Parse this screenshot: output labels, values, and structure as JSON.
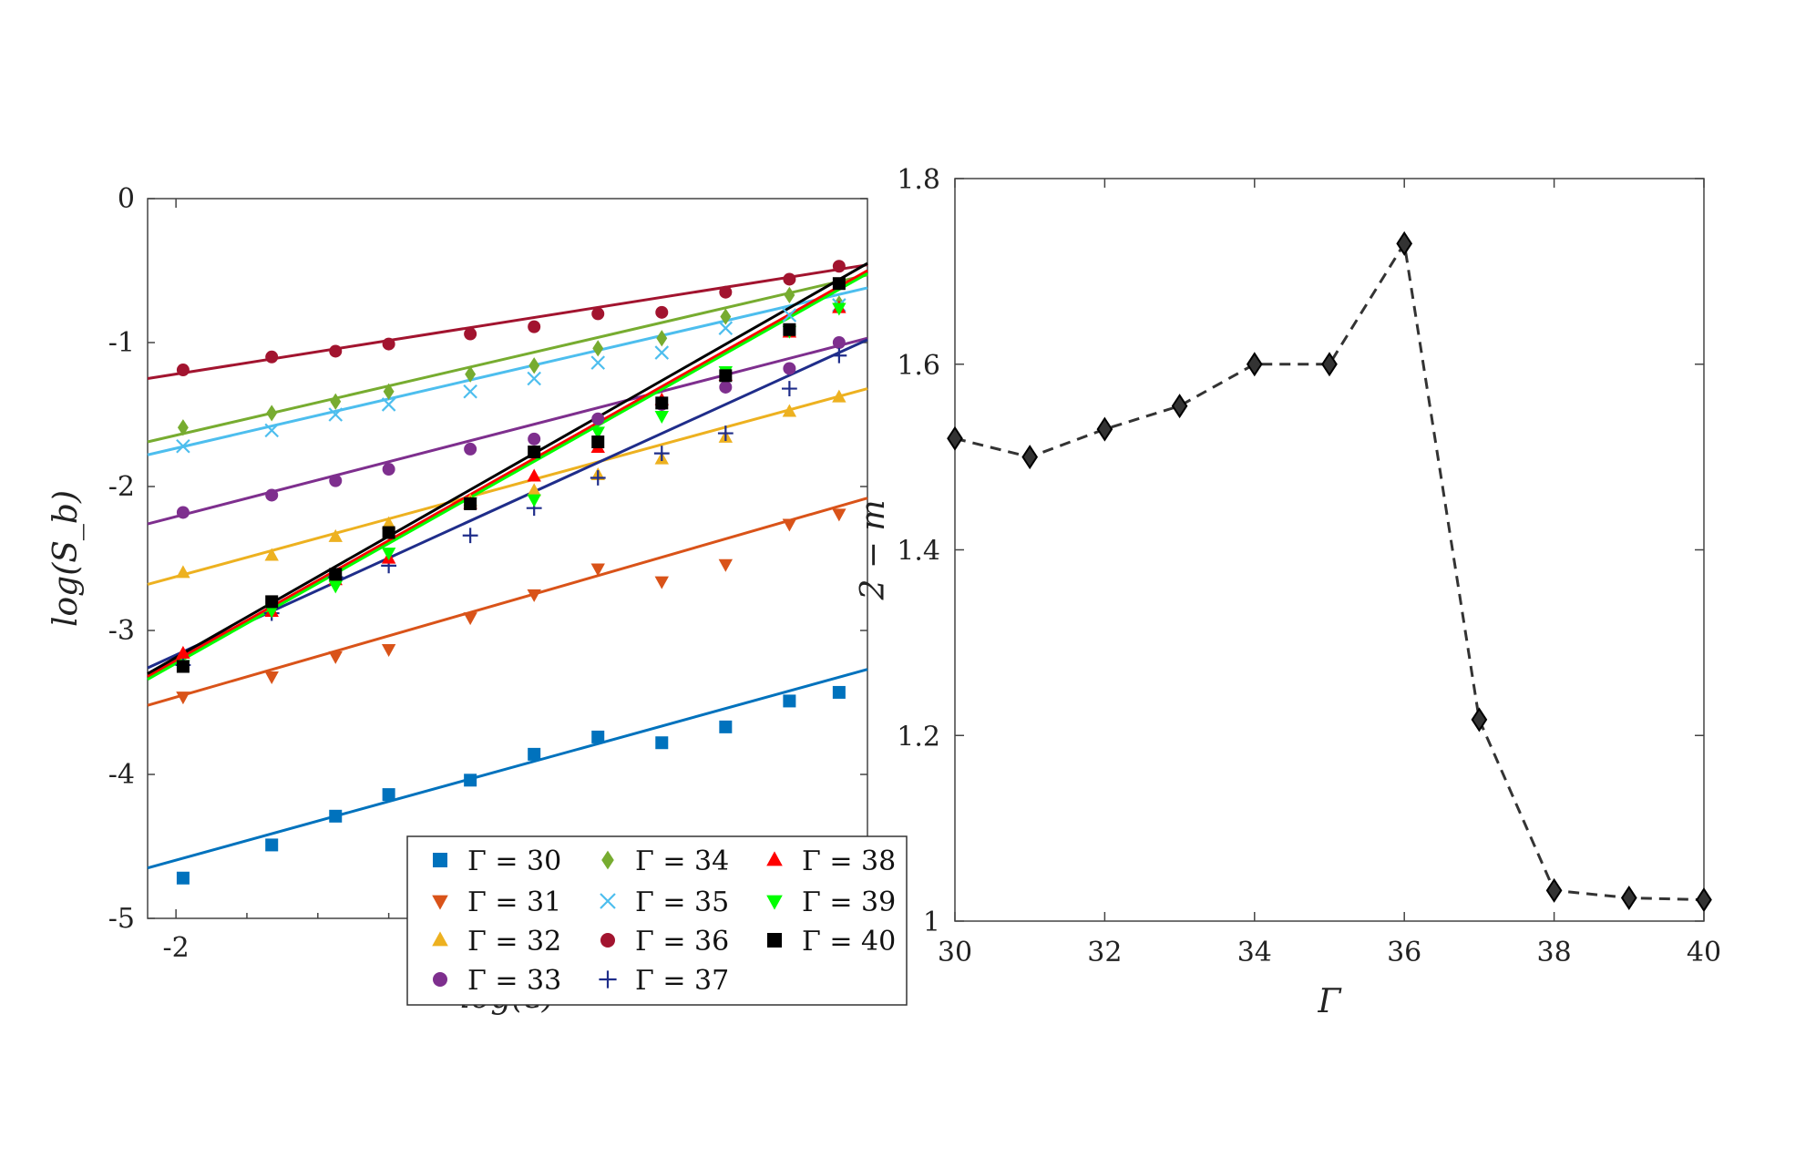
{
  "chart_data": [
    {
      "type": "scatter",
      "title": "",
      "xlabel": "log(ε)",
      "ylabel": "log(S_b)",
      "xlim": [
        -2.08,
        -0.05
      ],
      "ylim": [
        -5,
        0
      ],
      "xticks": [
        {
          "v": -2,
          "label": "-2"
        }
      ],
      "yticks": [
        {
          "v": 0,
          "label": "0"
        },
        {
          "v": -1,
          "label": "-1"
        },
        {
          "v": -2,
          "label": "-2"
        },
        {
          "v": -3,
          "label": "-3"
        },
        {
          "v": -4,
          "label": "-4"
        },
        {
          "v": -5,
          "label": "-5"
        }
      ],
      "x": [
        -1.98,
        -1.73,
        -1.55,
        -1.4,
        -1.17,
        -0.99,
        -0.81,
        -0.63,
        -0.45,
        -0.27,
        -0.13
      ],
      "legend_position": "bottom-right",
      "series": [
        {
          "name": "Γ = 30",
          "color": "#0072BD",
          "marker": "square",
          "values": [
            -4.72,
            -4.49,
            -4.29,
            -4.14,
            -4.04,
            -3.86,
            -3.74,
            -3.78,
            -3.67,
            -3.49,
            -3.43
          ],
          "fit": [
            -4.65,
            -3.27
          ]
        },
        {
          "name": "Γ = 31",
          "color": "#D95319",
          "marker": "triangle-down",
          "values": [
            -3.46,
            -3.32,
            -3.18,
            -3.13,
            -2.91,
            -2.75,
            -2.57,
            -2.66,
            -2.54,
            -2.26,
            -2.19
          ],
          "fit": [
            -3.52,
            -2.08
          ]
        },
        {
          "name": "Γ = 32",
          "color": "#EDB120",
          "marker": "triangle-up",
          "values": [
            -2.6,
            -2.48,
            -2.35,
            -2.26,
            -2.1,
            -2.03,
            -1.92,
            -1.81,
            -1.66,
            -1.48,
            -1.38
          ],
          "fit": [
            -2.68,
            -1.32
          ]
        },
        {
          "name": "Γ = 33",
          "color": "#7E2F8E",
          "marker": "circle",
          "values": [
            -2.18,
            -2.06,
            -1.96,
            -1.88,
            -1.74,
            -1.67,
            -1.53,
            -1.43,
            -1.31,
            -1.18,
            -1.0
          ],
          "fit": [
            -2.26,
            -0.97
          ]
        },
        {
          "name": "Γ = 34",
          "color": "#77AC30",
          "marker": "diamond",
          "values": [
            -1.59,
            -1.49,
            -1.41,
            -1.34,
            -1.22,
            -1.16,
            -1.04,
            -0.97,
            -0.82,
            -0.67,
            -0.73
          ],
          "fit": [
            -1.69,
            -0.53
          ]
        },
        {
          "name": "Γ = 35",
          "color": "#4DBEEE",
          "marker": "x",
          "values": [
            -1.72,
            -1.61,
            -1.5,
            -1.43,
            -1.34,
            -1.25,
            -1.14,
            -1.07,
            -0.9,
            -0.81,
            -0.74
          ],
          "fit": [
            -1.78,
            -0.62
          ]
        },
        {
          "name": "Γ = 36",
          "color": "#A2142F",
          "marker": "circle",
          "values": [
            -1.19,
            -1.1,
            -1.06,
            -1.01,
            -0.94,
            -0.89,
            -0.8,
            -0.79,
            -0.65,
            -0.56,
            -0.47
          ],
          "fit": [
            -1.25,
            -0.46
          ]
        },
        {
          "name": "Γ = 37",
          "color": "#1F2D8A",
          "marker": "plus",
          "values": [
            -3.24,
            -2.88,
            -2.63,
            -2.55,
            -2.34,
            -2.15,
            -1.94,
            -1.77,
            -1.63,
            -1.32,
            -1.09
          ],
          "fit": [
            -3.26,
            -0.98
          ]
        },
        {
          "name": "Γ = 38",
          "color": "#FF0000",
          "marker": "triangle-up",
          "values": [
            -3.16,
            -2.87,
            -2.65,
            -2.5,
            -2.12,
            -1.93,
            -1.73,
            -1.4,
            -1.23,
            -0.93,
            -0.76
          ],
          "fit": [
            -3.32,
            -0.5
          ]
        },
        {
          "name": "Γ = 39",
          "color": "#00FF00",
          "marker": "triangle-down",
          "values": [
            -3.24,
            -2.86,
            -2.69,
            -2.46,
            -2.11,
            -2.09,
            -1.62,
            -1.51,
            -1.2,
            -0.92,
            -0.76
          ],
          "fit": [
            -3.34,
            -0.52
          ]
        },
        {
          "name": "Γ = 40",
          "color": "#000000",
          "marker": "square",
          "values": [
            -3.25,
            -2.8,
            -2.61,
            -2.32,
            -2.12,
            -1.76,
            -1.69,
            -1.42,
            -1.23,
            -0.91,
            -0.59
          ],
          "fit": [
            -3.3,
            -0.45
          ]
        }
      ]
    },
    {
      "type": "line",
      "title": "",
      "xlabel": "Γ",
      "ylabel": "2 − m",
      "xlim": [
        30,
        40
      ],
      "ylim": [
        1.0,
        1.8
      ],
      "xticks": [
        {
          "v": 30,
          "label": "30"
        },
        {
          "v": 32,
          "label": "32"
        },
        {
          "v": 34,
          "label": "34"
        },
        {
          "v": 36,
          "label": "36"
        },
        {
          "v": 38,
          "label": "38"
        },
        {
          "v": 40,
          "label": "40"
        }
      ],
      "yticks": [
        {
          "v": 1.0,
          "label": "1"
        },
        {
          "v": 1.2,
          "label": "1.2"
        },
        {
          "v": 1.4,
          "label": "1.4"
        },
        {
          "v": 1.6,
          "label": "1.6"
        },
        {
          "v": 1.8,
          "label": "1.8"
        }
      ],
      "series": [
        {
          "x": [
            30,
            31,
            32,
            33,
            34,
            35,
            36,
            37,
            38,
            39,
            40
          ],
          "values": [
            1.52,
            1.5,
            1.53,
            1.555,
            1.6,
            1.6,
            1.73,
            1.217,
            1.033,
            1.025,
            1.023
          ],
          "color": "#333333",
          "marker": "diamond",
          "linestyle": "dashed"
        }
      ]
    }
  ]
}
